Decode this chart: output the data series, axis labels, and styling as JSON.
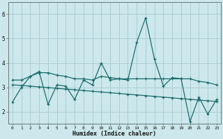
{
  "xlabel": "Humidex (Indice chaleur)",
  "background_color": "#cce8ec",
  "grid_color": "#aacdd4",
  "line_color": "#1a6b6b",
  "xlim": [
    -0.5,
    23.5
  ],
  "ylim": [
    1.5,
    6.5
  ],
  "xticks": [
    0,
    1,
    2,
    3,
    4,
    5,
    6,
    7,
    8,
    9,
    10,
    11,
    12,
    13,
    14,
    15,
    16,
    17,
    18,
    19,
    20,
    21,
    22,
    23
  ],
  "yticks": [
    2,
    3,
    4,
    5,
    6
  ],
  "series": [
    {
      "x": [
        0,
        1,
        2,
        3,
        4,
        5,
        6,
        7,
        8,
        9,
        10,
        11,
        12,
        13,
        14,
        15,
        16,
        17,
        18,
        19,
        20,
        21,
        22,
        23
      ],
      "y": [
        2.4,
        3.0,
        3.45,
        3.65,
        2.3,
        3.1,
        3.05,
        2.5,
        3.3,
        3.1,
        4.0,
        3.3,
        3.35,
        3.3,
        4.85,
        5.85,
        4.15,
        3.05,
        3.4,
        3.35,
        1.6,
        2.6,
        1.9,
        2.5
      ]
    },
    {
      "x": [
        0,
        1,
        2,
        3,
        4,
        5,
        6,
        7,
        8,
        9,
        10,
        11,
        12,
        13,
        14,
        15,
        16,
        17,
        18,
        19,
        20,
        21,
        22,
        23
      ],
      "y": [
        3.3,
        3.3,
        3.45,
        3.6,
        3.6,
        3.5,
        3.45,
        3.35,
        3.35,
        3.3,
        3.45,
        3.4,
        3.35,
        3.35,
        3.35,
        3.35,
        3.35,
        3.35,
        3.35,
        3.35,
        3.35,
        3.25,
        3.2,
        3.1
      ]
    },
    {
      "x": [
        0,
        1,
        2,
        3,
        4,
        5,
        6,
        7,
        8,
        9,
        10,
        11,
        12,
        13,
        14,
        15,
        16,
        17,
        18,
        19,
        20,
        21,
        22,
        23
      ],
      "y": [
        3.1,
        3.08,
        3.05,
        3.02,
        2.99,
        2.96,
        2.93,
        2.9,
        2.87,
        2.84,
        2.81,
        2.78,
        2.75,
        2.72,
        2.69,
        2.66,
        2.63,
        2.6,
        2.57,
        2.54,
        2.51,
        2.48,
        2.45,
        2.42
      ]
    }
  ]
}
